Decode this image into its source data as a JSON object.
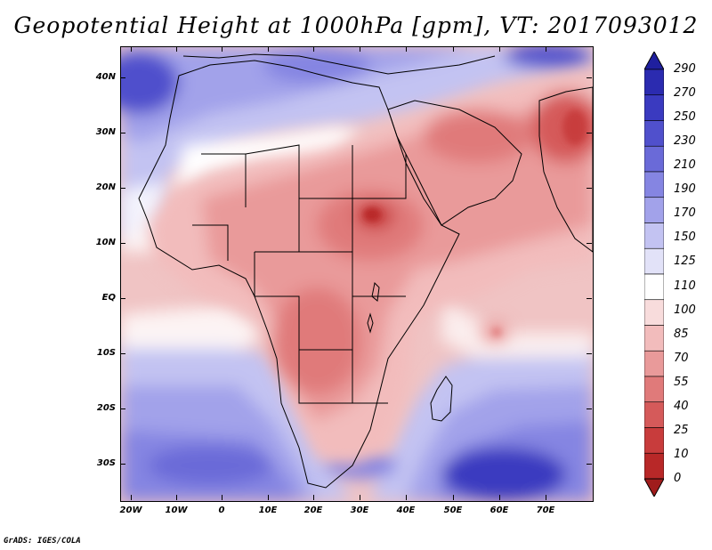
{
  "title": "Geopotential Height at 1000hPa [gpm], VT: 2017093012",
  "footer": "GrADS: IGES/COLA",
  "lat_labels": [
    "40N",
    "30N",
    "20N",
    "10N",
    "EQ",
    "10S",
    "20S",
    "30S"
  ],
  "lon_labels": [
    "20W",
    "10W",
    "0",
    "10E",
    "20E",
    "30E",
    "40E",
    "50E",
    "60E",
    "70E"
  ],
  "colorbar": {
    "levels": [
      "290",
      "270",
      "250",
      "230",
      "210",
      "190",
      "170",
      "150",
      "125",
      "110",
      "100",
      "85",
      "70",
      "55",
      "40",
      "25",
      "10",
      "0"
    ],
    "colors": [
      "#1f1f9e",
      "#2b2bb0",
      "#3a3ac0",
      "#5050cc",
      "#6a6ad8",
      "#8585e2",
      "#a2a2ea",
      "#c3c3f2",
      "#e2e2f8",
      "#ffffff",
      "#f8dcdc",
      "#f2bcbc",
      "#e99a9a",
      "#e07a7a",
      "#d55a5a",
      "#c83c3c",
      "#b82828",
      "#a01c1c"
    ]
  }
}
